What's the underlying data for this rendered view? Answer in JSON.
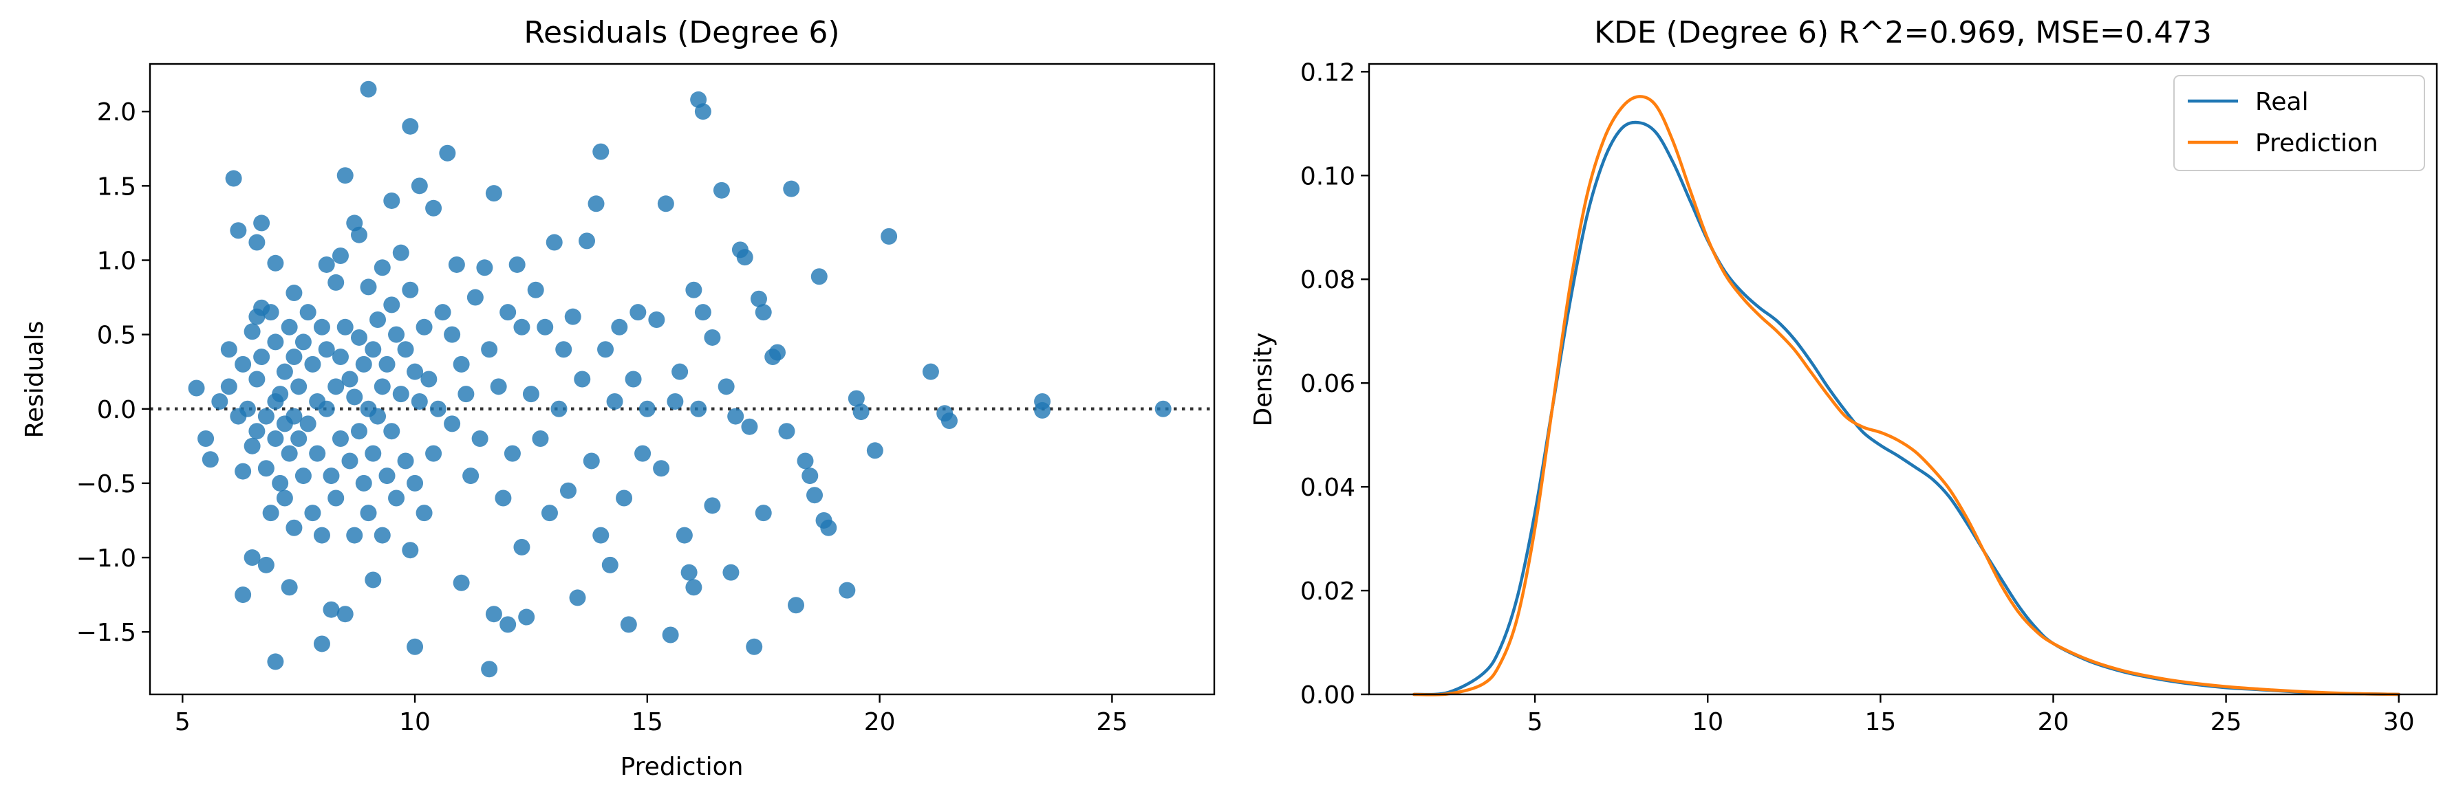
{
  "chart_data": [
    {
      "type": "scatter",
      "title": "Residuals (Degree 6)",
      "xlabel": "Prediction",
      "ylabel": "Residuals",
      "xlim": [
        4.3,
        27.2
      ],
      "ylim": [
        -1.92,
        2.32
      ],
      "xticks": [
        "5",
        "10",
        "15",
        "20",
        "25"
      ],
      "yticks": [
        "−1.5",
        "−1.0",
        "−0.5",
        "0.0",
        "0.5",
        "1.0",
        "1.5",
        "2.0"
      ],
      "xtick_values": [
        5,
        10,
        15,
        20,
        25
      ],
      "ytick_values": [
        -1.5,
        -1.0,
        -0.5,
        0.0,
        0.5,
        1.0,
        1.5,
        2.0
      ],
      "reference_line": {
        "y": 0.0,
        "style": "dotted",
        "color": "#333333"
      },
      "point_color": "#1f77b4",
      "points": [
        [
          5.3,
          0.14
        ],
        [
          5.5,
          -0.2
        ],
        [
          5.6,
          -0.34
        ],
        [
          5.8,
          0.05
        ],
        [
          6.0,
          0.4
        ],
        [
          6.0,
          0.15
        ],
        [
          6.1,
          1.55
        ],
        [
          6.2,
          1.2
        ],
        [
          6.2,
          -0.05
        ],
        [
          6.3,
          0.3
        ],
        [
          6.3,
          -0.42
        ],
        [
          6.3,
          -1.25
        ],
        [
          6.4,
          0.0
        ],
        [
          6.5,
          0.52
        ],
        [
          6.5,
          -0.25
        ],
        [
          6.5,
          -1.0
        ],
        [
          6.6,
          1.12
        ],
        [
          6.6,
          0.62
        ],
        [
          6.6,
          0.2
        ],
        [
          6.6,
          -0.15
        ],
        [
          6.7,
          1.25
        ],
        [
          6.7,
          0.68
        ],
        [
          6.7,
          0.35
        ],
        [
          6.8,
          -0.05
        ],
        [
          6.8,
          -0.4
        ],
        [
          6.8,
          -1.05
        ],
        [
          6.9,
          0.65
        ],
        [
          6.9,
          -0.7
        ],
        [
          7.0,
          0.98
        ],
        [
          7.0,
          0.45
        ],
        [
          7.0,
          0.05
        ],
        [
          7.0,
          -0.2
        ],
        [
          7.0,
          -1.7
        ],
        [
          7.1,
          0.1
        ],
        [
          7.1,
          -0.5
        ],
        [
          7.2,
          0.25
        ],
        [
          7.2,
          -0.1
        ],
        [
          7.2,
          -0.6
        ],
        [
          7.3,
          0.55
        ],
        [
          7.3,
          -0.3
        ],
        [
          7.3,
          -1.2
        ],
        [
          7.4,
          0.78
        ],
        [
          7.4,
          0.35
        ],
        [
          7.4,
          -0.05
        ],
        [
          7.4,
          -0.8
        ],
        [
          7.5,
          0.15
        ],
        [
          7.5,
          -0.2
        ],
        [
          7.6,
          0.45
        ],
        [
          7.6,
          -0.45
        ],
        [
          7.7,
          0.65
        ],
        [
          7.7,
          -0.1
        ],
        [
          7.8,
          0.3
        ],
        [
          7.8,
          -0.7
        ],
        [
          7.9,
          0.05
        ],
        [
          7.9,
          -0.3
        ],
        [
          8.0,
          0.55
        ],
        [
          8.0,
          -0.85
        ],
        [
          8.0,
          -1.58
        ],
        [
          8.1,
          0.97
        ],
        [
          8.1,
          0.4
        ],
        [
          8.1,
          0.0
        ],
        [
          8.2,
          -0.45
        ],
        [
          8.2,
          -1.35
        ],
        [
          8.3,
          0.85
        ],
        [
          8.3,
          0.15
        ],
        [
          8.3,
          -0.6
        ],
        [
          8.4,
          1.03
        ],
        [
          8.4,
          0.35
        ],
        [
          8.4,
          -0.2
        ],
        [
          8.5,
          1.57
        ],
        [
          8.5,
          0.55
        ],
        [
          8.5,
          -1.38
        ],
        [
          8.6,
          0.2
        ],
        [
          8.6,
          -0.35
        ],
        [
          8.7,
          1.25
        ],
        [
          8.7,
          0.08
        ],
        [
          8.7,
          -0.85
        ],
        [
          8.8,
          1.17
        ],
        [
          8.8,
          0.48
        ],
        [
          8.8,
          -0.15
        ],
        [
          8.9,
          0.3
        ],
        [
          8.9,
          -0.5
        ],
        [
          9.0,
          2.15
        ],
        [
          9.0,
          0.82
        ],
        [
          9.0,
          0.0
        ],
        [
          9.0,
          -0.7
        ],
        [
          9.1,
          0.4
        ],
        [
          9.1,
          -0.3
        ],
        [
          9.1,
          -1.15
        ],
        [
          9.2,
          0.6
        ],
        [
          9.2,
          -0.05
        ],
        [
          9.3,
          0.95
        ],
        [
          9.3,
          0.15
        ],
        [
          9.3,
          -0.85
        ],
        [
          9.4,
          0.3
        ],
        [
          9.4,
          -0.45
        ],
        [
          9.5,
          1.4
        ],
        [
          9.5,
          0.7
        ],
        [
          9.5,
          -0.15
        ],
        [
          9.6,
          0.5
        ],
        [
          9.6,
          -0.6
        ],
        [
          9.7,
          1.05
        ],
        [
          9.7,
          0.1
        ],
        [
          9.8,
          0.4
        ],
        [
          9.8,
          -0.35
        ],
        [
          9.9,
          1.9
        ],
        [
          9.9,
          0.8
        ],
        [
          9.9,
          -0.95
        ],
        [
          10.0,
          0.25
        ],
        [
          10.0,
          -0.5
        ],
        [
          10.0,
          -1.6
        ],
        [
          10.1,
          1.5
        ],
        [
          10.1,
          0.05
        ],
        [
          10.2,
          0.55
        ],
        [
          10.2,
          -0.7
        ],
        [
          10.3,
          0.2
        ],
        [
          10.4,
          1.35
        ],
        [
          10.4,
          -0.3
        ],
        [
          10.5,
          0.0
        ],
        [
          10.6,
          0.65
        ],
        [
          10.7,
          1.72
        ],
        [
          10.8,
          0.5
        ],
        [
          10.8,
          -0.1
        ],
        [
          10.9,
          0.97
        ],
        [
          11.0,
          0.3
        ],
        [
          11.0,
          -1.17
        ],
        [
          11.1,
          0.1
        ],
        [
          11.2,
          -0.45
        ],
        [
          11.3,
          0.75
        ],
        [
          11.4,
          -0.2
        ],
        [
          11.5,
          0.95
        ],
        [
          11.6,
          0.4
        ],
        [
          11.6,
          -1.75
        ],
        [
          11.7,
          1.45
        ],
        [
          11.7,
          -1.38
        ],
        [
          11.8,
          0.15
        ],
        [
          11.9,
          -0.6
        ],
        [
          12.0,
          0.65
        ],
        [
          12.0,
          -1.45
        ],
        [
          12.1,
          -0.3
        ],
        [
          12.2,
          0.97
        ],
        [
          12.3,
          0.55
        ],
        [
          12.3,
          -0.93
        ],
        [
          12.4,
          -1.4
        ],
        [
          12.5,
          0.1
        ],
        [
          12.6,
          0.8
        ],
        [
          12.7,
          -0.2
        ],
        [
          12.8,
          0.55
        ],
        [
          12.9,
          -0.7
        ],
        [
          13.0,
          1.12
        ],
        [
          13.1,
          0.0
        ],
        [
          13.2,
          0.4
        ],
        [
          13.3,
          -0.55
        ],
        [
          13.4,
          0.62
        ],
        [
          13.5,
          -1.27
        ],
        [
          13.6,
          0.2
        ],
        [
          13.7,
          1.13
        ],
        [
          13.8,
          -0.35
        ],
        [
          13.9,
          1.38
        ],
        [
          14.0,
          -0.85
        ],
        [
          14.0,
          1.73
        ],
        [
          14.1,
          0.4
        ],
        [
          14.2,
          -1.05
        ],
        [
          14.3,
          0.05
        ],
        [
          14.4,
          0.55
        ],
        [
          14.5,
          -0.6
        ],
        [
          14.6,
          -1.45
        ],
        [
          14.7,
          0.2
        ],
        [
          14.8,
          0.65
        ],
        [
          14.9,
          -0.3
        ],
        [
          15.0,
          0.0
        ],
        [
          15.2,
          0.6
        ],
        [
          15.3,
          -0.4
        ],
        [
          15.4,
          1.38
        ],
        [
          15.5,
          -1.52
        ],
        [
          15.6,
          0.05
        ],
        [
          15.7,
          0.25
        ],
        [
          15.8,
          -0.85
        ],
        [
          15.9,
          -1.1
        ],
        [
          16.0,
          0.8
        ],
        [
          16.0,
          -1.2
        ],
        [
          16.1,
          2.08
        ],
        [
          16.1,
          0.0
        ],
        [
          16.2,
          2.0
        ],
        [
          16.2,
          0.65
        ],
        [
          16.4,
          0.48
        ],
        [
          16.4,
          -0.65
        ],
        [
          16.6,
          1.47
        ],
        [
          16.7,
          0.15
        ],
        [
          16.8,
          -1.1
        ],
        [
          16.9,
          -0.05
        ],
        [
          17.0,
          1.07
        ],
        [
          17.1,
          1.02
        ],
        [
          17.2,
          -0.12
        ],
        [
          17.3,
          -1.6
        ],
        [
          17.4,
          0.74
        ],
        [
          17.5,
          0.65
        ],
        [
          17.5,
          -0.7
        ],
        [
          17.7,
          0.35
        ],
        [
          17.8,
          0.38
        ],
        [
          18.0,
          -0.15
        ],
        [
          18.1,
          1.48
        ],
        [
          18.2,
          -1.32
        ],
        [
          18.4,
          -0.35
        ],
        [
          18.5,
          -0.45
        ],
        [
          18.6,
          -0.58
        ],
        [
          18.7,
          0.89
        ],
        [
          18.8,
          -0.75
        ],
        [
          18.9,
          -0.8
        ],
        [
          19.3,
          -1.22
        ],
        [
          19.5,
          0.07
        ],
        [
          19.6,
          -0.02
        ],
        [
          19.9,
          -0.28
        ],
        [
          20.2,
          1.16
        ],
        [
          21.1,
          0.25
        ],
        [
          21.4,
          -0.03
        ],
        [
          21.5,
          -0.08
        ],
        [
          23.5,
          0.05
        ],
        [
          23.5,
          -0.01
        ],
        [
          26.1,
          0.0
        ]
      ]
    },
    {
      "type": "line",
      "title": "KDE (Degree 6) R^2=0.969, MSE=0.473",
      "xlabel": "",
      "ylabel": "Density",
      "xlim": [
        0.2,
        31.1
      ],
      "ylim": [
        0.0,
        0.1215
      ],
      "xticks": [
        "5",
        "10",
        "15",
        "20",
        "25",
        "30"
      ],
      "yticks": [
        "0.00",
        "0.02",
        "0.04",
        "0.06",
        "0.08",
        "0.10",
        "0.12"
      ],
      "xtick_values": [
        5,
        10,
        15,
        20,
        25,
        30
      ],
      "ytick_values": [
        0.0,
        0.02,
        0.04,
        0.06,
        0.08,
        0.1,
        0.12
      ],
      "legend_position": "top-right",
      "x": [
        1.5,
        2.5,
        3.5,
        4.0,
        4.5,
        5.0,
        5.5,
        6.0,
        6.5,
        7.0,
        7.5,
        8.0,
        8.5,
        9.0,
        9.5,
        10.0,
        10.5,
        11.0,
        11.5,
        12.0,
        12.5,
        13.0,
        13.5,
        14.0,
        14.5,
        15.0,
        15.5,
        16.0,
        16.5,
        17.0,
        17.5,
        18.0,
        18.5,
        19.0,
        19.5,
        20.0,
        21.0,
        22.0,
        23.0,
        24.0,
        25.0,
        26.0,
        27.0,
        28.0,
        29.0,
        30.0
      ],
      "series": [
        {
          "name": "Real",
          "color": "#1f77b4",
          "values": [
            0.0,
            0.0004,
            0.004,
            0.009,
            0.019,
            0.035,
            0.055,
            0.075,
            0.092,
            0.103,
            0.109,
            0.1102,
            0.1083,
            0.1025,
            0.095,
            0.0875,
            0.0815,
            0.0775,
            0.0745,
            0.072,
            0.0685,
            0.064,
            0.059,
            0.0545,
            0.0505,
            0.048,
            0.046,
            0.0438,
            0.0415,
            0.038,
            0.033,
            0.0275,
            0.0222,
            0.017,
            0.0128,
            0.0098,
            0.0065,
            0.0044,
            0.003,
            0.002,
            0.0013,
            0.0009,
            0.0005,
            0.0002,
            0.0001,
            0.0
          ]
        },
        {
          "name": "Prediction",
          "color": "#ff7f0e",
          "values": [
            0.0,
            0.0001,
            0.002,
            0.006,
            0.015,
            0.032,
            0.055,
            0.078,
            0.096,
            0.107,
            0.113,
            0.1152,
            0.1135,
            0.1065,
            0.097,
            0.0878,
            0.081,
            0.0765,
            0.073,
            0.07,
            0.0665,
            0.062,
            0.0575,
            0.0535,
            0.0515,
            0.0505,
            0.049,
            0.0468,
            0.0435,
            0.0395,
            0.034,
            0.0275,
            0.021,
            0.0158,
            0.0122,
            0.0098,
            0.0067,
            0.0046,
            0.0032,
            0.0022,
            0.0015,
            0.001,
            0.0006,
            0.0003,
            0.0001,
            0.0
          ]
        }
      ]
    }
  ]
}
